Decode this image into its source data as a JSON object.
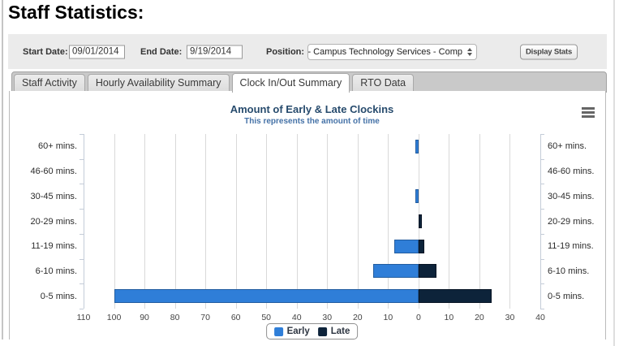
{
  "page_title": "Staff Statistics:",
  "form": {
    "start_date_label": "Start Date:",
    "start_date_value": "09/01/2014",
    "end_date_label": "End Date:",
    "end_date_value": "9/19/2014",
    "position_label": "Position:",
    "position_value": "- Campus Technology Services - Comp",
    "display_stats_label": "Display Stats"
  },
  "tabs": [
    {
      "label": "Staff Activity",
      "active": false
    },
    {
      "label": "Hourly Availability Summary",
      "active": false
    },
    {
      "label": "Clock In/Out Summary",
      "active": true
    },
    {
      "label": "RTO Data",
      "active": false
    }
  ],
  "chart_data": {
    "type": "bar",
    "title": "Amount of Early & Late Clockins",
    "subtitle": "This represents the amount of time",
    "categories": [
      "60+ mins.",
      "46-60 mins.",
      "30-45 mins.",
      "20-29 mins.",
      "11-19 mins.",
      "6-10 mins.",
      "0-5 mins."
    ],
    "series": [
      {
        "name": "Early",
        "color": "#2f7ed8",
        "values": [
          1,
          0,
          1,
          0,
          8,
          15,
          100
        ]
      },
      {
        "name": "Late",
        "color": "#0d233a",
        "values": [
          0,
          0,
          0,
          1,
          2,
          6,
          24
        ]
      }
    ],
    "orientation": "horizontal-diverging",
    "xlim": [
      -110,
      40
    ],
    "tick_step": 10,
    "axis_tick_labels": [
      "110",
      "100",
      "90",
      "80",
      "70",
      "60",
      "50",
      "40",
      "30",
      "20",
      "10",
      "0",
      "10",
      "20",
      "30",
      "40"
    ],
    "grid": true,
    "legend_position": "bottom-center"
  }
}
